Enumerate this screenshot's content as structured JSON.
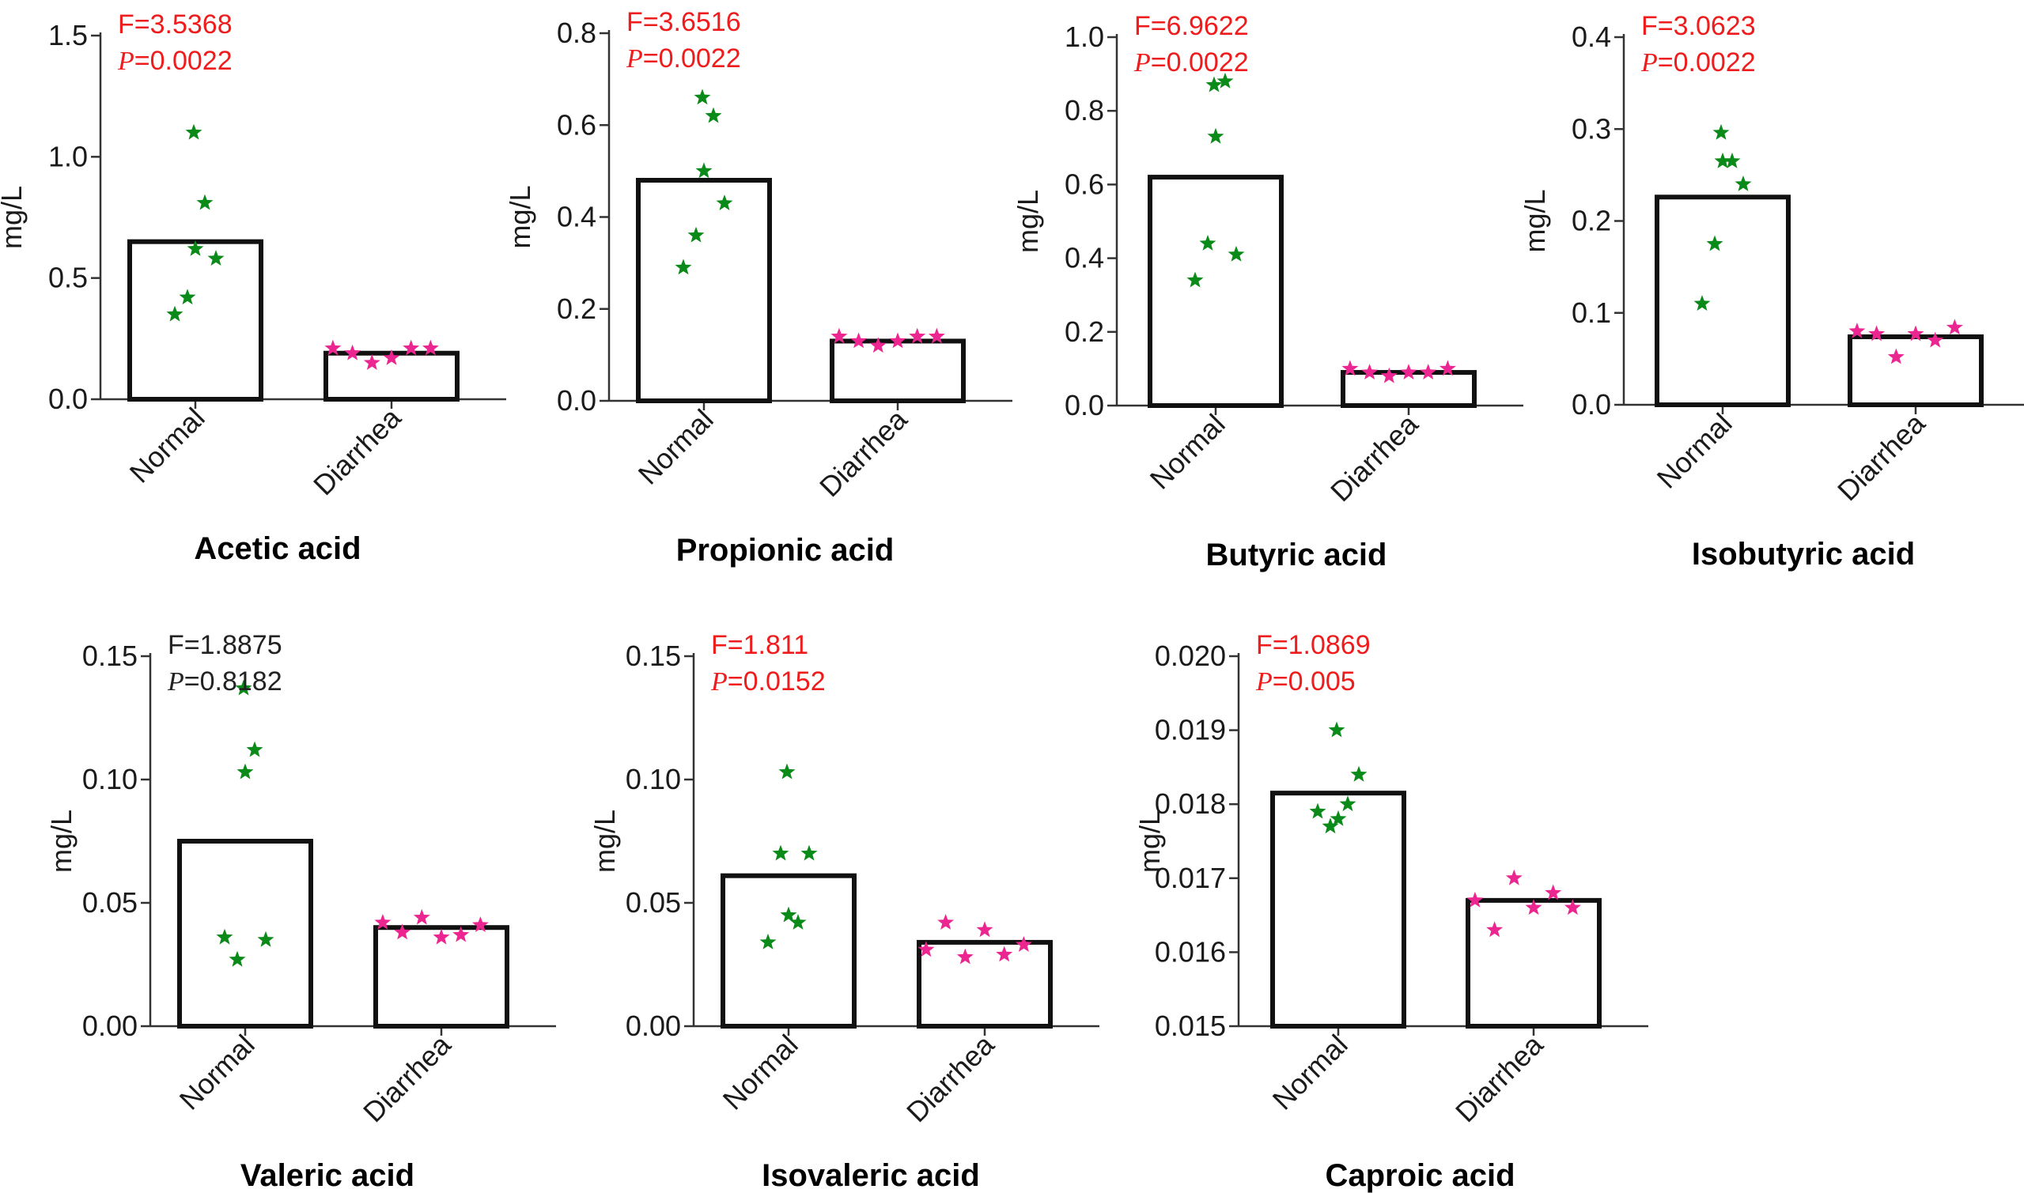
{
  "chart_data": [
    {
      "type": "bar",
      "title": "Acetic acid",
      "ylabel": "mg/L",
      "categories": [
        "Normal",
        "Diarrhea"
      ],
      "values": [
        0.65,
        0.19
      ],
      "ylim": [
        0,
        1.5
      ],
      "ticks": [
        0,
        0.5,
        1.0,
        1.5
      ],
      "tick_labels": [
        "0.0",
        "0.5",
        "1.0",
        "1.5"
      ],
      "points": [
        [
          0.35,
          0.42,
          0.58,
          0.62,
          0.81,
          1.1
        ],
        [
          0.21,
          0.19,
          0.15,
          0.17,
          0.21,
          0.21
        ]
      ],
      "stat_f": "F=3.5368",
      "stat_p_symbol": "P",
      "stat_p_value": "=0.0022",
      "stat_color": "#ee1c1c"
    },
    {
      "type": "bar",
      "title": "Propionic acid",
      "ylabel": "mg/L",
      "categories": [
        "Normal",
        "Diarrhea"
      ],
      "values": [
        0.48,
        0.13
      ],
      "ylim": [
        0,
        0.8
      ],
      "ticks": [
        0,
        0.2,
        0.4,
        0.6,
        0.8
      ],
      "tick_labels": [
        "0.0",
        "0.2",
        "0.4",
        "0.6",
        "0.8"
      ],
      "points": [
        [
          0.29,
          0.36,
          0.43,
          0.5,
          0.62,
          0.66
        ],
        [
          0.14,
          0.13,
          0.12,
          0.13,
          0.14,
          0.14
        ]
      ],
      "stat_f": "F=3.6516",
      "stat_p_symbol": "P",
      "stat_p_value": "=0.0022",
      "stat_color": "#ee1c1c"
    },
    {
      "type": "bar",
      "title": "Butyric acid",
      "ylabel": "mg/L",
      "categories": [
        "Normal",
        "Diarrhea"
      ],
      "values": [
        0.62,
        0.09
      ],
      "ylim": [
        0,
        1.0
      ],
      "ticks": [
        0,
        0.2,
        0.4,
        0.6,
        0.8,
        1.0
      ],
      "tick_labels": [
        "0.0",
        "0.2",
        "0.4",
        "0.6",
        "0.8",
        "1.0"
      ],
      "points": [
        [
          0.34,
          0.44,
          0.41,
          0.73,
          0.88,
          0.87
        ],
        [
          0.1,
          0.09,
          0.08,
          0.09,
          0.09,
          0.1
        ]
      ],
      "stat_f": "F=6.9622",
      "stat_p_symbol": "P",
      "stat_p_value": "=0.0022",
      "stat_color": "#ee1c1c"
    },
    {
      "type": "bar",
      "title": "Isobutyric acid",
      "ylabel": "mg/L",
      "categories": [
        "Normal",
        "Diarrhea"
      ],
      "values": [
        0.226,
        0.074
      ],
      "ylim": [
        0,
        0.4
      ],
      "ticks": [
        0,
        0.1,
        0.2,
        0.3,
        0.4
      ],
      "tick_labels": [
        "0.0",
        "0.1",
        "0.2",
        "0.3",
        "0.4"
      ],
      "points": [
        [
          0.11,
          0.175,
          0.24,
          0.265,
          0.265,
          0.296
        ],
        [
          0.08,
          0.077,
          0.052,
          0.077,
          0.07,
          0.084
        ]
      ],
      "stat_f": "F=3.0623",
      "stat_p_symbol": "P",
      "stat_p_value": "=0.0022",
      "stat_color": "#ee1c1c"
    },
    {
      "type": "bar",
      "title": "Valeric acid",
      "ylabel": "mg/L",
      "categories": [
        "Normal",
        "Diarrhea"
      ],
      "values": [
        0.075,
        0.04
      ],
      "ylim": [
        0,
        0.15
      ],
      "ticks": [
        0,
        0.05,
        0.1,
        0.15
      ],
      "tick_labels": [
        "0.00",
        "0.05",
        "0.10",
        "0.15"
      ],
      "points": [
        [
          0.036,
          0.027,
          0.035,
          0.103,
          0.112,
          0.137
        ],
        [
          0.042,
          0.038,
          0.044,
          0.036,
          0.037,
          0.041
        ]
      ],
      "stat_f": "F=1.8875",
      "stat_p_symbol": "P",
      "stat_p_value": "=0.8182",
      "stat_color": "#222222"
    },
    {
      "type": "bar",
      "title": "Isovaleric acid",
      "ylabel": "mg/L",
      "categories": [
        "Normal",
        "Diarrhea"
      ],
      "values": [
        0.061,
        0.034
      ],
      "ylim": [
        0,
        0.15
      ],
      "ticks": [
        0,
        0.05,
        0.1,
        0.15
      ],
      "tick_labels": [
        "0.00",
        "0.05",
        "0.10",
        "0.15"
      ],
      "points": [
        [
          0.034,
          0.07,
          0.07,
          0.045,
          0.042,
          0.103
        ],
        [
          0.031,
          0.042,
          0.028,
          0.039,
          0.029,
          0.033
        ]
      ],
      "stat_f": "F=1.811",
      "stat_p_symbol": "P",
      "stat_p_value": "=0.0152",
      "stat_color": "#ee1c1c"
    },
    {
      "type": "bar",
      "title": "Caproic acid",
      "ylabel": "mg/L",
      "categories": [
        "Normal",
        "Diarrhea"
      ],
      "values": [
        0.01815,
        0.0167
      ],
      "ylim": [
        0.015,
        0.02
      ],
      "ticks": [
        0.015,
        0.016,
        0.017,
        0.018,
        0.019,
        0.02
      ],
      "tick_labels": [
        "0.015",
        "0.016",
        "0.017",
        "0.018",
        "0.019",
        "0.020"
      ],
      "points": [
        [
          0.0179,
          0.0177,
          0.0184,
          0.0178,
          0.018,
          0.019
        ],
        [
          0.0167,
          0.0163,
          0.017,
          0.0166,
          0.0168,
          0.0166
        ]
      ],
      "stat_f": "F=1.0869",
      "stat_p_symbol": "P",
      "stat_p_value": "=0.005",
      "stat_color": "#ee1c1c"
    }
  ],
  "colors": {
    "normal": "#0a8a18",
    "diarrhea": "#ec2690",
    "bar_stroke": "#111111",
    "axis": "#333333"
  }
}
